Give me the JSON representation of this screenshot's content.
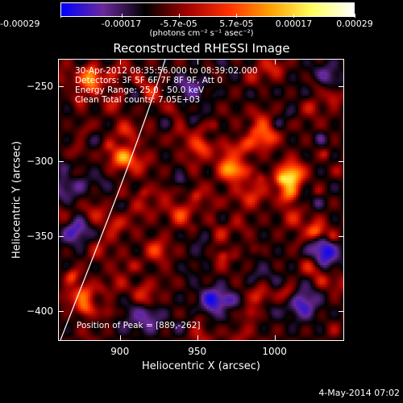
{
  "colorbar": {
    "tick_labels": [
      "-0.00029",
      "-0.00017",
      "-5.7e-05",
      "5.7e-05",
      "0.00017",
      "0.00029"
    ],
    "tick_values": [
      -0.00029,
      -0.00017,
      -5.7e-05,
      5.7e-05,
      0.00017,
      0.00029
    ],
    "range": [
      -0.00029,
      0.00029
    ],
    "units": "(photons cm⁻² s⁻¹ asec⁻²)",
    "colors": [
      "#0000ff",
      "#6a2a9a",
      "#000000",
      "#a00000",
      "#ff3000",
      "#ffa000",
      "#ffff60",
      "#ffffff"
    ]
  },
  "plot": {
    "title": "Reconstructed RHESSI Image",
    "info_lines": [
      "30-Apr-2012 08:35:56.000 to 08:39:02.000",
      "Detectors: 3F 5F 6F 7F 8F 9F, Att 0",
      "Energy Range: 25.0 - 50.0 keV",
      "Clean      Total counts: 7.05E+03"
    ],
    "peak_label": "Position of Peak = [889,-262]"
  },
  "chart_data": {
    "type": "heatmap",
    "title": "Reconstructed RHESSI Image",
    "xlabel": "Heliocentric X (arcsec)",
    "ylabel": "Heliocentric Y (arcsec)",
    "xlim": [
      860,
      1045
    ],
    "ylim": [
      -420,
      -232
    ],
    "x_ticks": [
      900,
      950,
      1000
    ],
    "y_ticks": [
      -250,
      -300,
      -350,
      -400
    ],
    "x_tick_labels": [
      "900",
      "950",
      "1000"
    ],
    "y_tick_labels": [
      "−250",
      "−300",
      "−350",
      "−400"
    ],
    "peak_position": [
      889,
      -262
    ],
    "value_range": [
      -0.00029,
      0.00029
    ]
  },
  "footer": {
    "date": "4-May-2014 07:02"
  }
}
